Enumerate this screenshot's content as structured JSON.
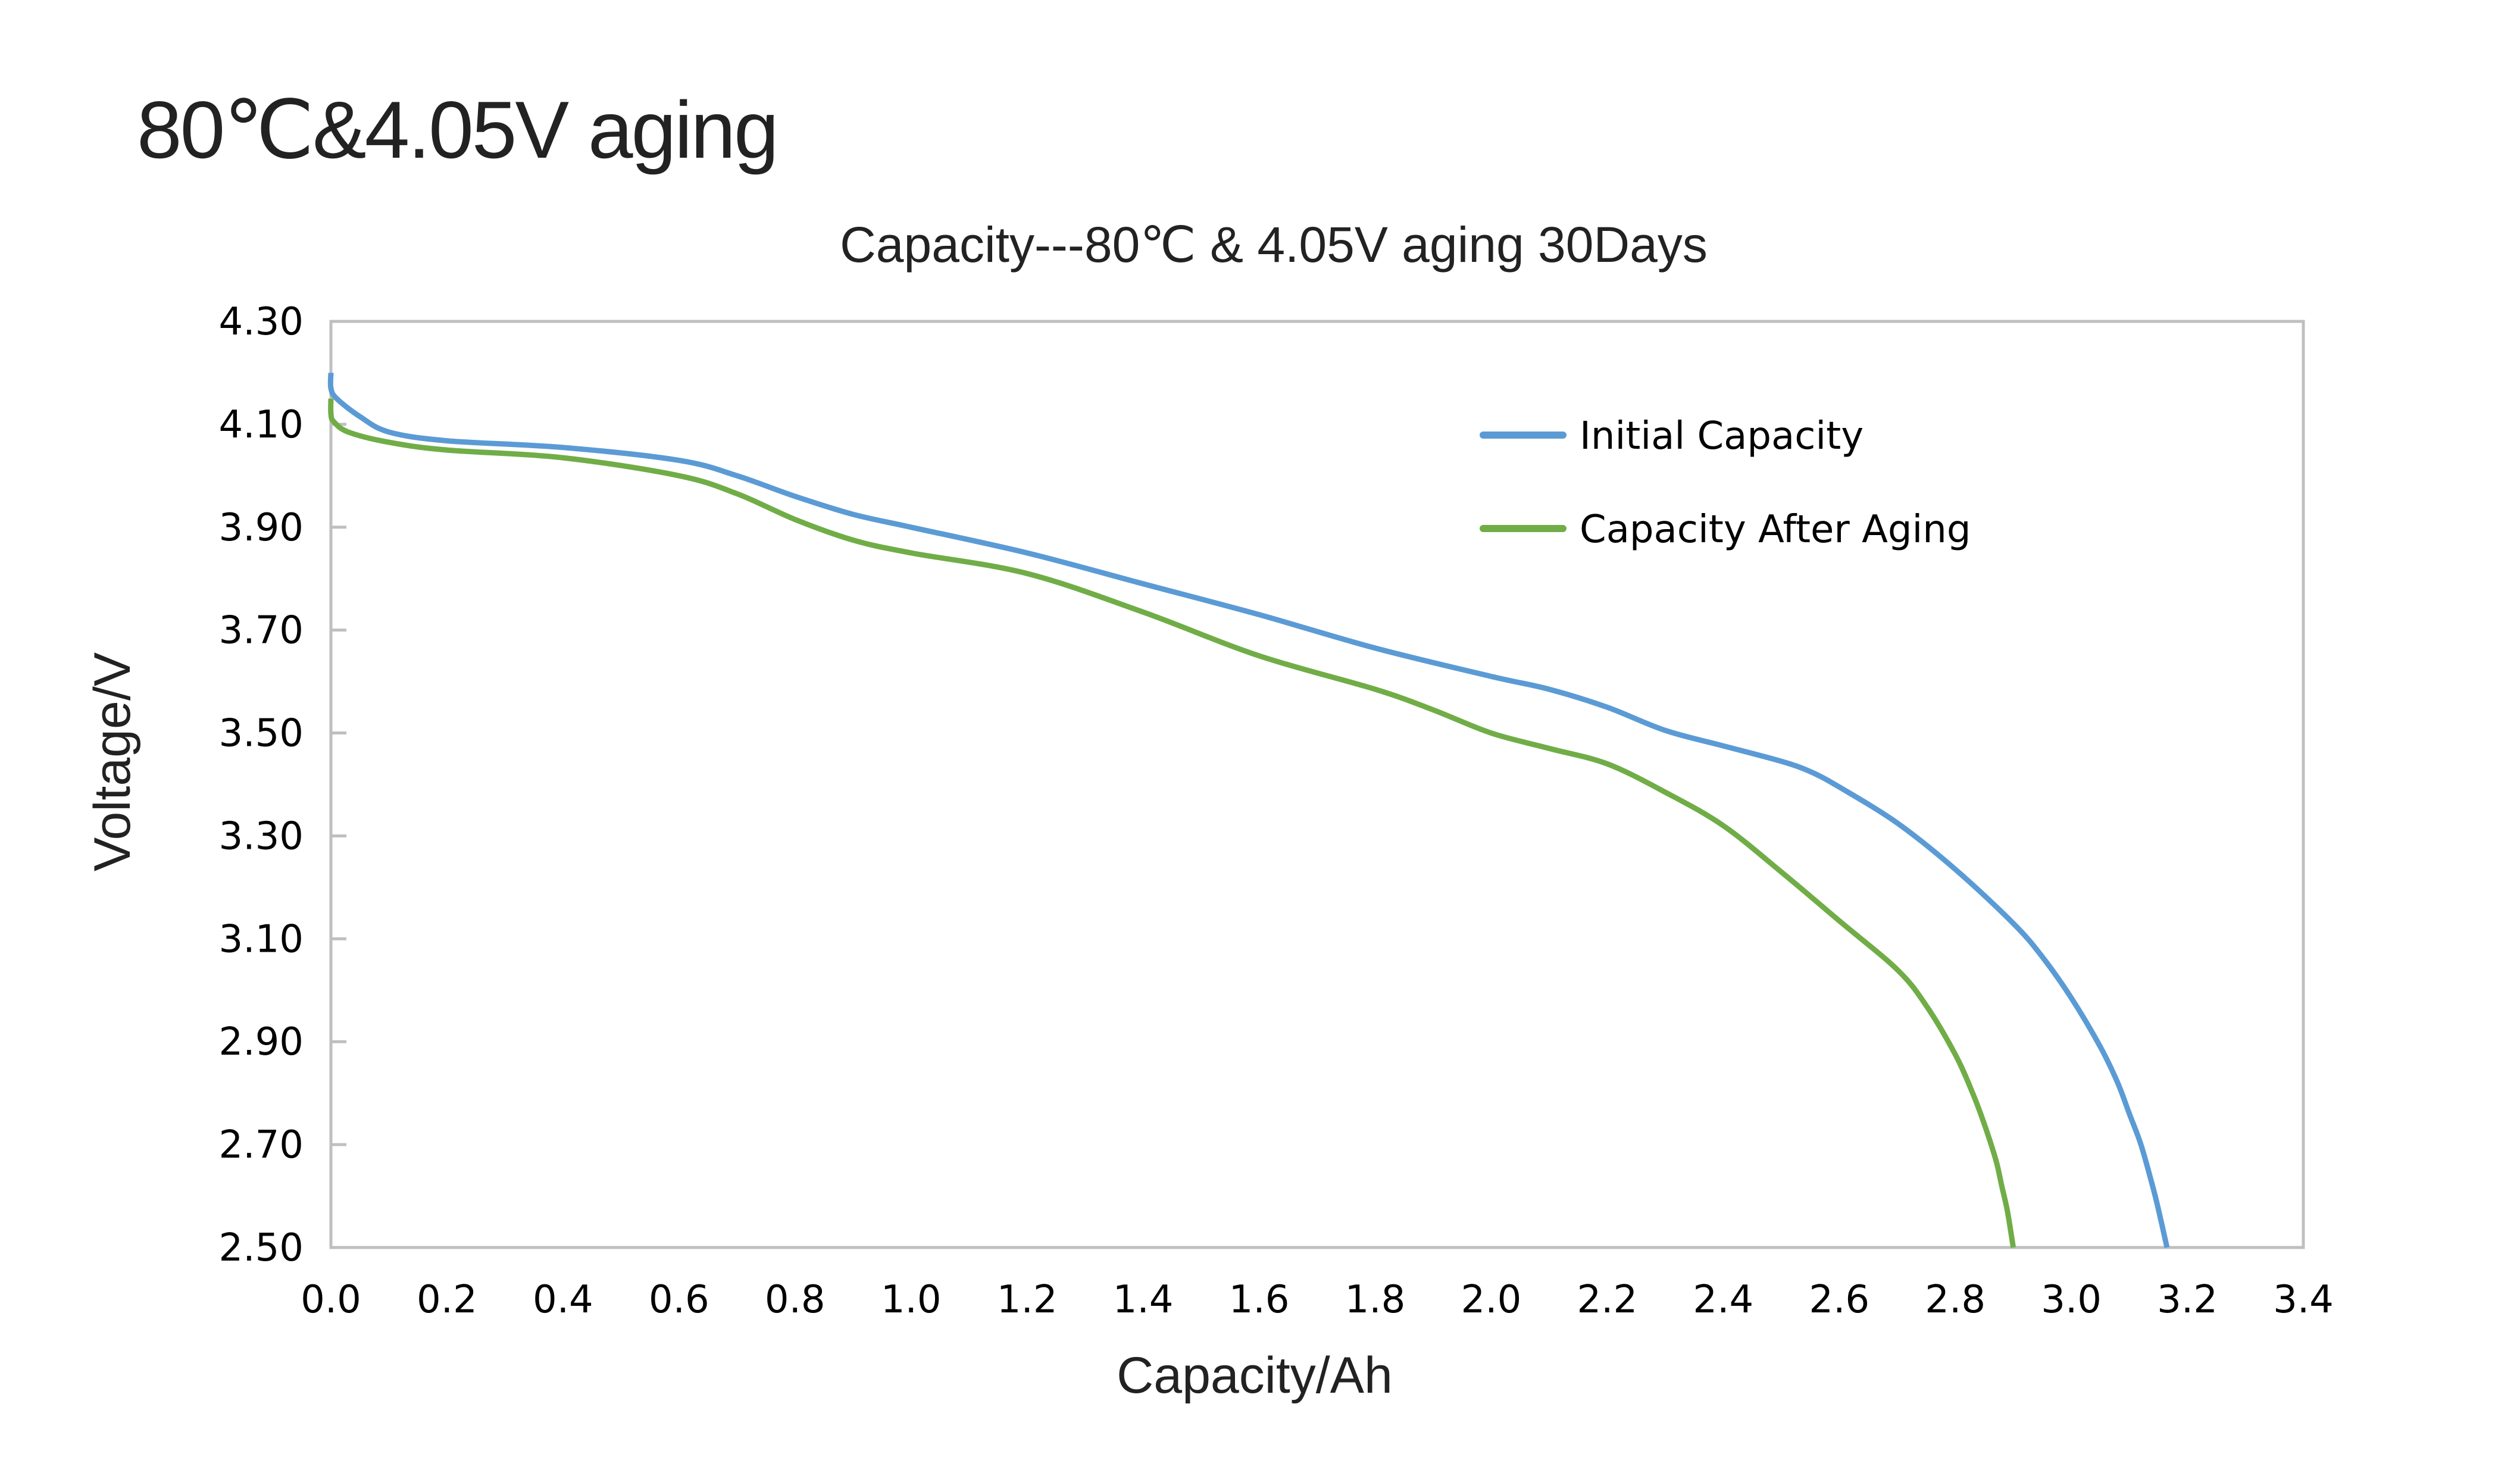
{
  "page": {
    "title": "80℃&4.05V aging"
  },
  "chart_data": {
    "type": "line",
    "title": "Capacity---80℃ & 4.05V aging  30Days",
    "xlabel": "Capacity/Ah",
    "ylabel": "Voltage/V",
    "xlim": [
      0.0,
      3.4
    ],
    "ylim": [
      2.5,
      4.3
    ],
    "x_ticks": [
      "0.0",
      "0.2",
      "0.4",
      "0.6",
      "0.8",
      "1.0",
      "1.2",
      "1.4",
      "1.6",
      "1.8",
      "2.0",
      "2.2",
      "2.4",
      "2.6",
      "2.8",
      "3.0",
      "3.2",
      "3.4"
    ],
    "y_ticks": [
      "4.30",
      "4.10",
      "3.90",
      "3.70",
      "3.50",
      "3.30",
      "3.10",
      "2.90",
      "2.70",
      "2.50"
    ],
    "grid": false,
    "legend_position": "top-right",
    "series": [
      {
        "name": "Initial Capacity",
        "color": "#5B9BD5",
        "x": [
          0.0,
          0.0,
          0.01,
          0.05,
          0.1,
          0.2,
          0.4,
          0.6,
          0.7,
          0.8,
          0.9,
          1.0,
          1.2,
          1.4,
          1.6,
          1.8,
          2.0,
          2.1,
          2.2,
          2.3,
          2.4,
          2.5,
          2.55,
          2.6,
          2.7,
          2.8,
          2.9,
          2.95,
          3.0,
          3.05,
          3.08,
          3.1,
          3.12,
          3.14,
          3.15,
          3.165
        ],
        "y": [
          4.2,
          4.17,
          4.15,
          4.115,
          4.085,
          4.068,
          4.055,
          4.03,
          4.0,
          3.96,
          3.925,
          3.9,
          3.85,
          3.79,
          3.73,
          3.665,
          3.61,
          3.585,
          3.55,
          3.505,
          3.475,
          3.445,
          3.425,
          3.395,
          3.325,
          3.235,
          3.13,
          3.065,
          2.985,
          2.89,
          2.82,
          2.76,
          2.7,
          2.62,
          2.575,
          2.5
        ]
      },
      {
        "name": "Capacity After Aging",
        "color": "#70AD47",
        "x": [
          0.0,
          0.0,
          0.005,
          0.03,
          0.1,
          0.2,
          0.4,
          0.6,
          0.7,
          0.8,
          0.9,
          1.0,
          1.2,
          1.4,
          1.6,
          1.8,
          1.9,
          2.0,
          2.1,
          2.2,
          2.3,
          2.4,
          2.5,
          2.6,
          2.7,
          2.75,
          2.8,
          2.83,
          2.85,
          2.87,
          2.88,
          2.89,
          2.9
        ],
        "y": [
          4.15,
          4.12,
          4.105,
          4.085,
          4.065,
          4.05,
          4.035,
          4.0,
          3.965,
          3.915,
          3.875,
          3.85,
          3.81,
          3.735,
          3.65,
          3.585,
          3.545,
          3.5,
          3.47,
          3.44,
          3.385,
          3.32,
          3.23,
          3.135,
          3.04,
          2.97,
          2.875,
          2.8,
          2.74,
          2.67,
          2.62,
          2.57,
          2.5
        ]
      }
    ]
  }
}
